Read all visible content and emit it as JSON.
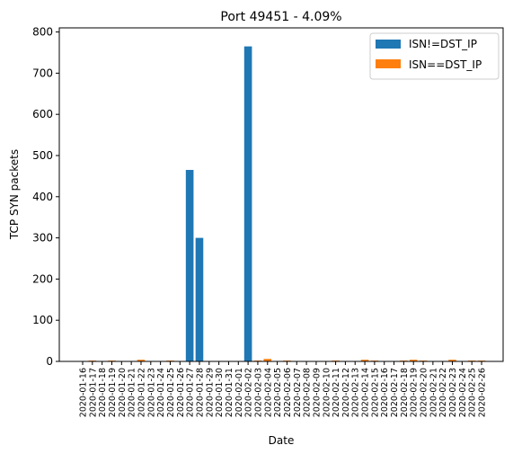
{
  "chart_data": {
    "type": "bar",
    "title": "Port 49451 - 4.09%",
    "xlabel": "Date",
    "ylabel": "TCP SYN packets",
    "ylim": [
      0,
      810
    ],
    "yticks": [
      0,
      100,
      200,
      300,
      400,
      500,
      600,
      700,
      800
    ],
    "grid": false,
    "legend_position": "top-right",
    "stacked": true,
    "categories": [
      "2020-01-16",
      "2020-01-17",
      "2020-01-18",
      "2020-01-19",
      "2020-01-20",
      "2020-01-21",
      "2020-01-22",
      "2020-01-23",
      "2020-01-24",
      "2020-01-25",
      "2020-01-26",
      "2020-01-27",
      "2020-01-28",
      "2020-01-29",
      "2020-01-30",
      "2020-01-31",
      "2020-02-01",
      "2020-02-02",
      "2020-02-03",
      "2020-02-04",
      "2020-02-05",
      "2020-02-06",
      "2020-02-07",
      "2020-02-08",
      "2020-02-09",
      "2020-02-10",
      "2020-02-11",
      "2020-02-12",
      "2020-02-13",
      "2020-02-14",
      "2020-02-15",
      "2020-02-16",
      "2020-02-17",
      "2020-02-18",
      "2020-02-19",
      "2020-02-20",
      "2020-02-21",
      "2020-02-22",
      "2020-02-23",
      "2020-02-24",
      "2020-02-25",
      "2020-02-26"
    ],
    "series": [
      {
        "name": "ISN!=DST_IP",
        "color": "#1f77b4",
        "values": [
          0,
          0,
          0,
          0,
          0,
          0,
          0,
          0,
          0,
          0,
          0,
          465,
          300,
          0,
          0,
          0,
          0,
          765,
          0,
          0,
          0,
          0,
          0,
          0,
          0,
          0,
          0,
          0,
          0,
          0,
          0,
          0,
          0,
          0,
          0,
          0,
          0,
          0,
          0,
          0,
          0,
          0
        ]
      },
      {
        "name": "ISN==DST_IP",
        "color": "#ff7f0e",
        "values": [
          0,
          2,
          0,
          2,
          0,
          0,
          4,
          0,
          0,
          2,
          0,
          0,
          0,
          0,
          0,
          0,
          0,
          0,
          2,
          6,
          0,
          2,
          0,
          0,
          0,
          0,
          2,
          0,
          0,
          4,
          2,
          0,
          0,
          2,
          4,
          2,
          0,
          0,
          4,
          0,
          2,
          2
        ]
      }
    ]
  }
}
